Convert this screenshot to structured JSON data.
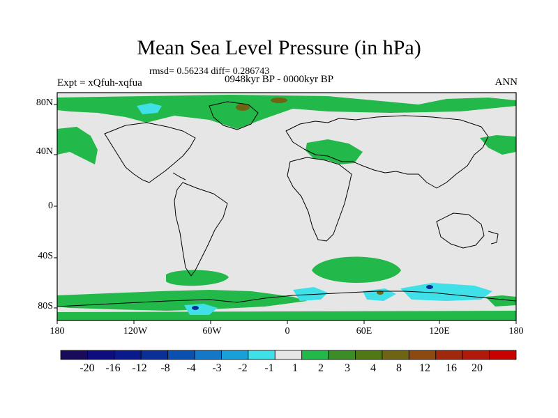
{
  "title": "Mean Sea Level Pressure (in hPa)",
  "stats": "rmsd= 0.56234 diff= 0.286743",
  "experiment": "Expt = xQfuh-xqfua",
  "period": "0948kyr BP - 0000kyr BP",
  "season": "ANN",
  "latitude_labels": [
    "80N",
    "40N",
    "0",
    "40S",
    "80S"
  ],
  "longitude_labels": [
    "180",
    "120W",
    "60W",
    "0",
    "60E",
    "120E",
    "180"
  ],
  "colorbar": {
    "labels": [
      "-20",
      "-16",
      "-12",
      "-8",
      "-4",
      "-3",
      "-2",
      "-1",
      "1",
      "2",
      "3",
      "4",
      "8",
      "12",
      "16",
      "20"
    ],
    "colors": [
      "#1a0a5a",
      "#0d0d80",
      "#0a1a8c",
      "#0a3098",
      "#0a50b0",
      "#1478c8",
      "#1aa0d8",
      "#40e0e8",
      "#e6e6e6",
      "#23b84a",
      "#3c8c28",
      "#507814",
      "#6e6414",
      "#8c4a10",
      "#a0280c",
      "#b01a0a",
      "#c80000"
    ]
  },
  "colors": {
    "background": "#e6e6e6",
    "coast": "#000000",
    "positive_main": "#23b84a",
    "positive_dark": "#6e6414",
    "negative": "#40e0e8"
  }
}
